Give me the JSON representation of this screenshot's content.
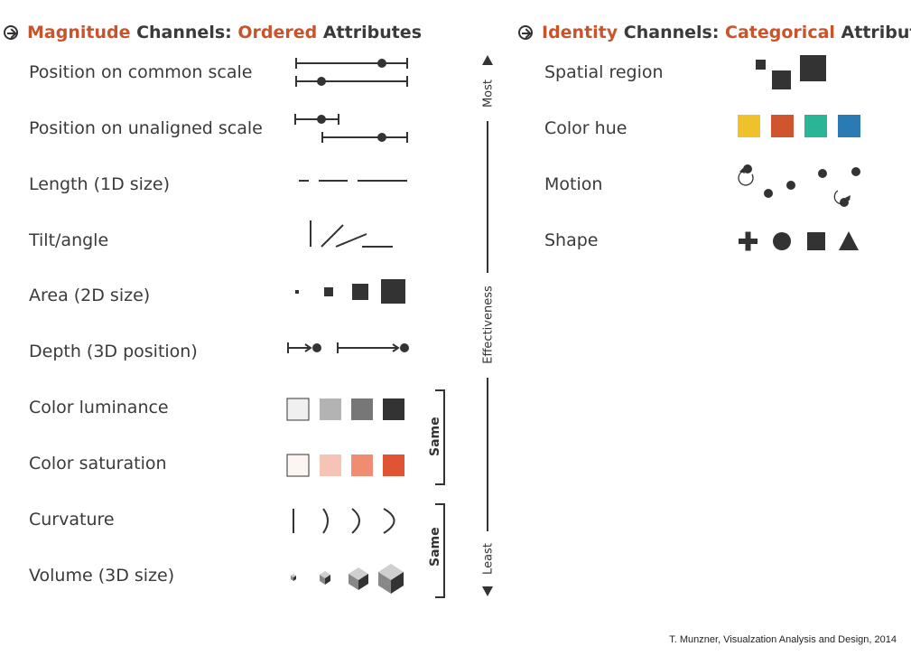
{
  "magnitude_heading": {
    "part1": "Magnitude",
    "part2": " Channels: ",
    "part3": "Ordered",
    "part4": " Attributes"
  },
  "identity_heading": {
    "part1": "Identity",
    "part2": " Channels: ",
    "part3": "Categorical",
    "part4": " Attributes"
  },
  "magnitude_channels": [
    "Position on common scale",
    "Position on unaligned scale",
    "Length (1D size)",
    "Tilt/angle",
    "Area (2D size)",
    "Depth (3D position)",
    "Color luminance",
    "Color saturation",
    "Curvature",
    "Volume (3D size)"
  ],
  "identity_channels": [
    "Spatial region",
    "Color hue",
    "Motion",
    "Shape"
  ],
  "effectiveness_axis": {
    "top_label": "Most",
    "middle_label": "Effectiveness",
    "bottom_label": "Least"
  },
  "same_labels": [
    "Same",
    "Same"
  ],
  "colors": {
    "accent": "#c9542b",
    "luminance": [
      "#f0f0f0",
      "#b3b3b3",
      "#777777",
      "#333333"
    ],
    "saturation": [
      "#fdf5f2",
      "#f5c4b6",
      "#ef8c72",
      "#e05433"
    ],
    "hue": [
      "#eec12d",
      "#cf552e",
      "#2bb597",
      "#2a7ab3"
    ]
  },
  "credit": "T. Munzner, Visualzation Analysis and Design, 2014"
}
